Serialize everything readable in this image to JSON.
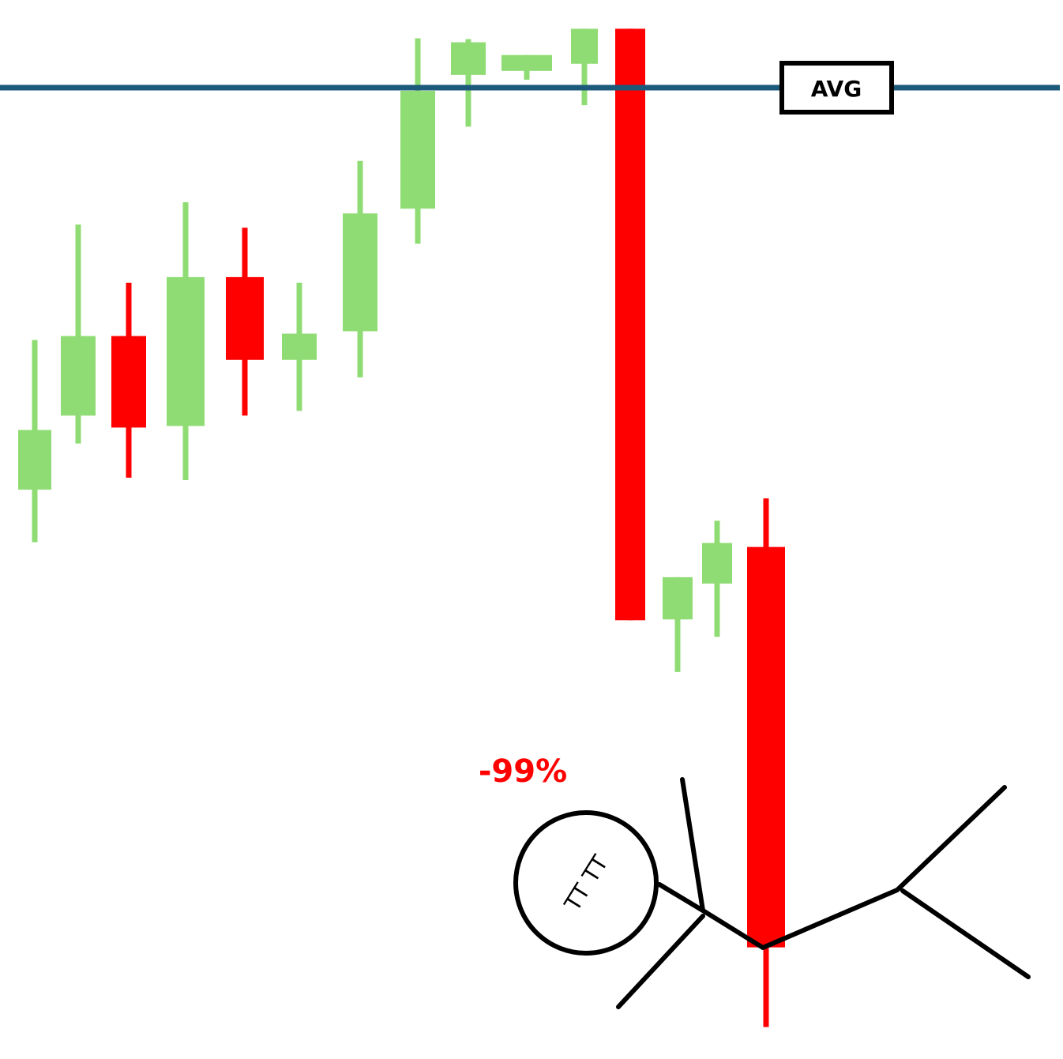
{
  "chart_data": {
    "type": "candlestick",
    "title": "",
    "xlabel": "",
    "ylabel": "",
    "ylim": [
      0,
      100
    ],
    "grid": false,
    "colors": {
      "up": "#90dc74",
      "down": "#ff0000",
      "avg_line": "#1c5a7c",
      "sketch": "#000000"
    },
    "candles": [
      {
        "open": 49.5,
        "close": 57.0,
        "high": 68.3,
        "low": 42.9,
        "direction": "up"
      },
      {
        "open": 58.8,
        "close": 68.8,
        "high": 82.8,
        "low": 55.3,
        "direction": "up"
      },
      {
        "open": 68.8,
        "close": 57.3,
        "high": 75.5,
        "low": 51.0,
        "direction": "down"
      },
      {
        "open": 57.5,
        "close": 76.2,
        "high": 85.6,
        "low": 50.7,
        "direction": "up"
      },
      {
        "open": 76.2,
        "close": 65.8,
        "high": 82.4,
        "low": 58.8,
        "direction": "down"
      },
      {
        "open": 65.8,
        "close": 69.1,
        "high": 75.5,
        "low": 59.4,
        "direction": "up"
      },
      {
        "open": 69.4,
        "close": 84.2,
        "high": 90.8,
        "low": 63.6,
        "direction": "up"
      },
      {
        "open": 84.8,
        "close": 99.6,
        "high": 106.2,
        "low": 80.4,
        "direction": "up"
      },
      {
        "open": 101.6,
        "close": 105.7,
        "high": 106.1,
        "low": 95.1,
        "direction": "up"
      },
      {
        "open": 102.1,
        "close": 104.1,
        "high": 104.1,
        "low": 101.0,
        "direction": "up"
      },
      {
        "open": 103.0,
        "close": 107.4,
        "high": 107.4,
        "low": 97.8,
        "direction": "up"
      },
      {
        "open": 107.4,
        "close": 33.1,
        "high": 107.4,
        "low": 33.1,
        "direction": "down"
      },
      {
        "open": 33.2,
        "close": 38.5,
        "high": 38.5,
        "low": 26.6,
        "direction": "up"
      },
      {
        "open": 37.7,
        "close": 42.8,
        "high": 45.6,
        "low": 31.0,
        "direction": "up"
      },
      {
        "open": 42.3,
        "close": -8.0,
        "high": 48.4,
        "low": -18.0,
        "direction": "down"
      }
    ],
    "avg_level": 100.0,
    "annotations": [
      {
        "text": "AVG"
      },
      {
        "text": "-99%"
      },
      {
        "text": "TT TT"
      }
    ]
  }
}
